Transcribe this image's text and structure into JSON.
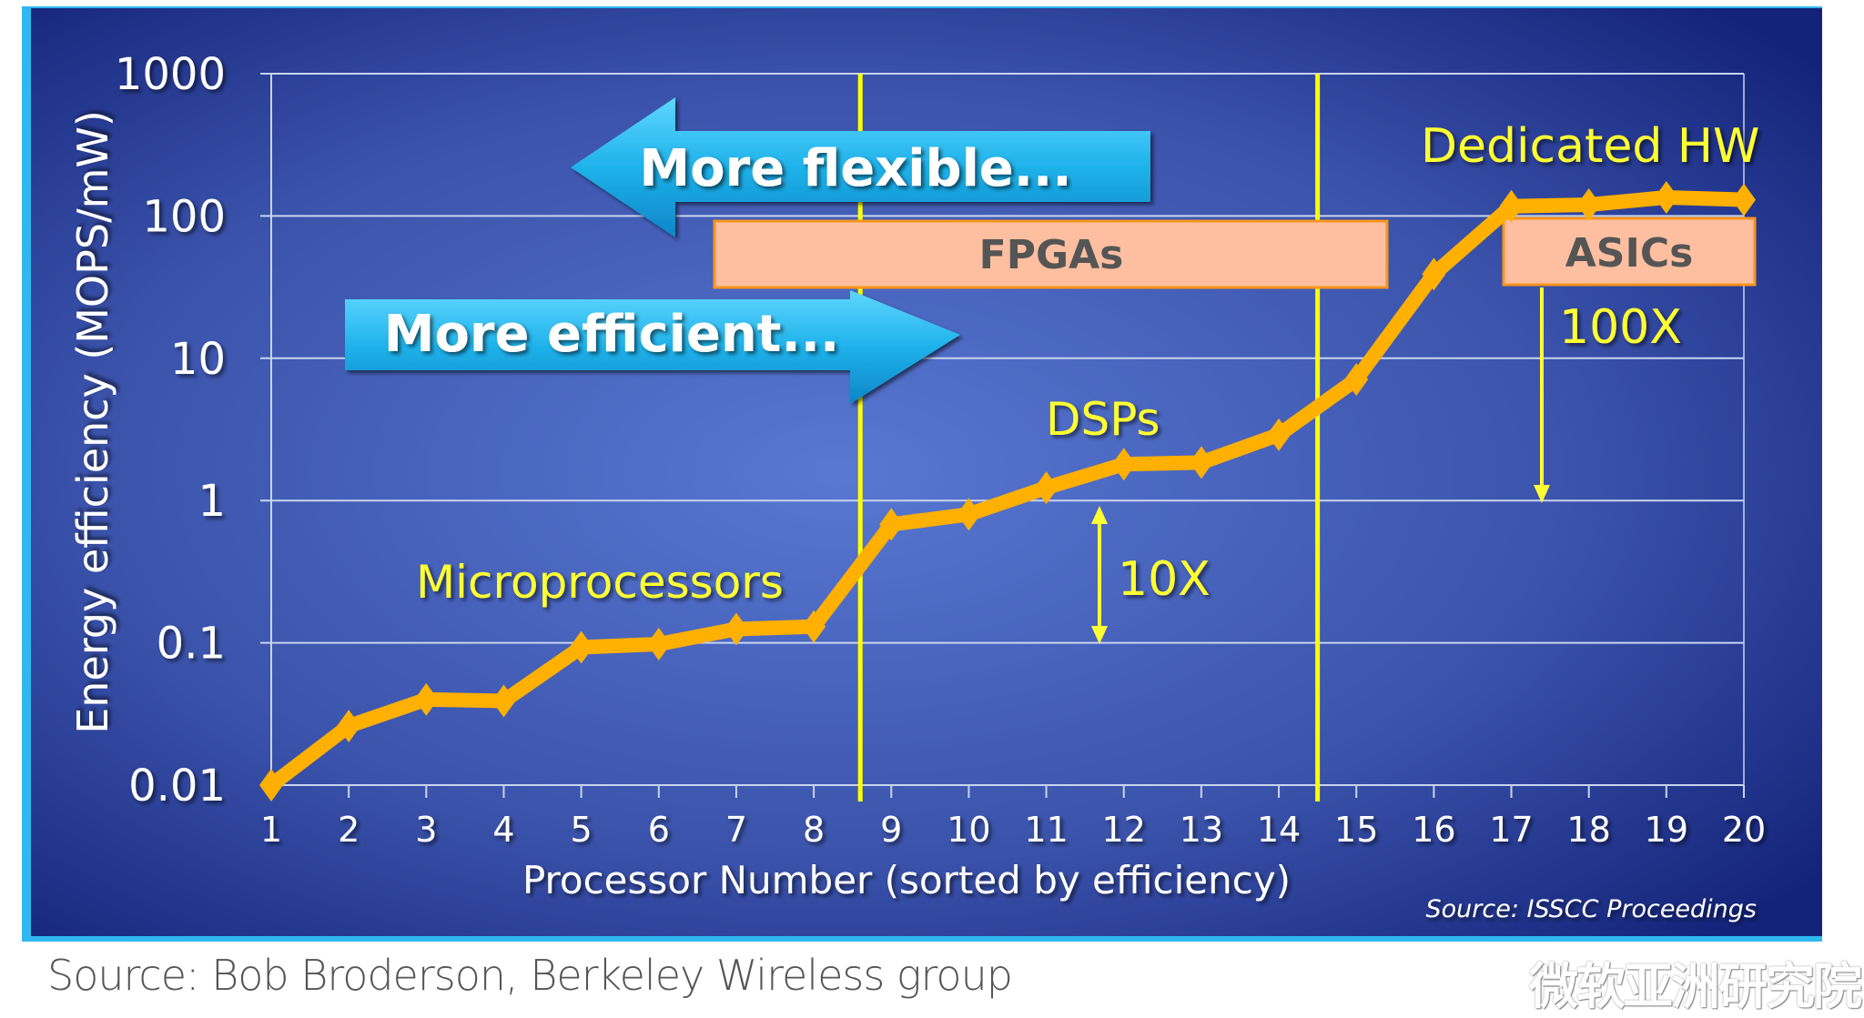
{
  "chart_data": {
    "type": "line",
    "xlabel": "Processor Number (sorted by efficiency)",
    "ylabel": "Energy efficiency (MOPS/mW)",
    "yscale": "log",
    "ylim": [
      0.01,
      1000
    ],
    "xlim": [
      1,
      20
    ],
    "x": [
      1,
      2,
      3,
      4,
      5,
      6,
      7,
      8,
      9,
      10,
      11,
      12,
      13,
      14,
      15,
      16,
      17,
      18,
      19,
      20
    ],
    "values": [
      0.01,
      0.026,
      0.04,
      0.039,
      0.093,
      0.098,
      0.125,
      0.13,
      0.68,
      0.8,
      1.23,
      1.8,
      1.85,
      2.9,
      7.1,
      39,
      117,
      120,
      135,
      130
    ],
    "x_tick_labels": [
      "1",
      "2",
      "3",
      "4",
      "5",
      "6",
      "7",
      "8",
      "9",
      "10",
      "11",
      "12",
      "13",
      "14",
      "15",
      "16",
      "17",
      "18",
      "19",
      "20"
    ],
    "y_ticks": [
      0.01,
      0.1,
      1,
      10,
      100,
      1000
    ],
    "y_tick_labels": [
      "0.01",
      "0.1",
      "1",
      "10",
      "100",
      "1000"
    ],
    "grid": "horizontal",
    "line_color": "#FFB000",
    "divider_lines_x": [
      8.6,
      14.5
    ],
    "divider_color": "#FFFF00",
    "annotations": {
      "more_flexible": "More flexible...",
      "more_efficient": "More efficient...",
      "fpgas": "FPGAs",
      "asics": "ASICs",
      "dedicated_hw": "Dedicated HW",
      "dsps": "DSPs",
      "microprocessors": "Microprocessors",
      "ten_x": "10X",
      "hundred_x": "100X"
    },
    "chart_source": "Source: ISSCC Proceedings"
  },
  "colors": {
    "background_dark": "#16247a",
    "background_light": "#5576d0",
    "arrow": "#1fb4e8",
    "box_fill": "#FDBFA0",
    "box_border": "#F7941D",
    "label_yellow": "#FFFF33"
  },
  "footer": {
    "source": "Source: Bob Broderson, Berkeley Wireless group",
    "watermark": "微软亚洲研究院"
  }
}
